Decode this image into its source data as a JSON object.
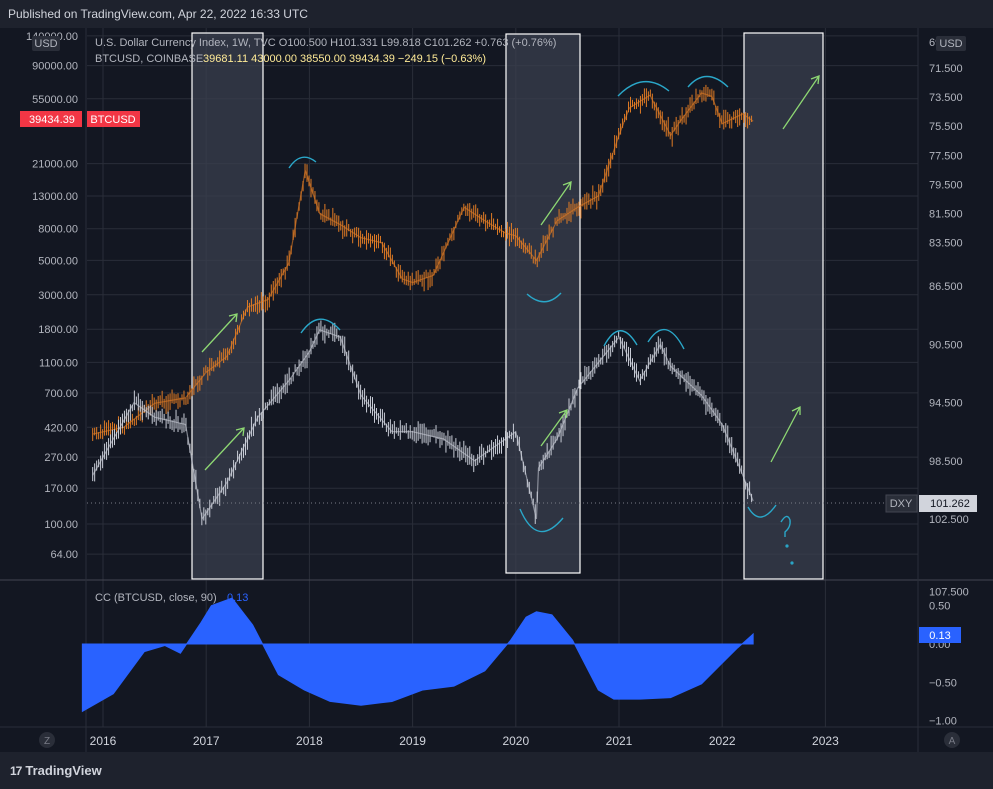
{
  "header": {
    "published": "Published on TradingView.com, Apr 22, 2022 16:33 UTC"
  },
  "footer": {
    "logo_text": "TradingView",
    "logo_mark": "17"
  },
  "colors": {
    "background": "#131722",
    "btc_candles": "#e07b24",
    "dxy_candles": "#c8ccd6",
    "highlight_box_fill": "#3a3f4d",
    "highlight_box_border": "#ffffff",
    "annotation_arrow": "#8ed873",
    "annotation_arc": "#2aa7c9",
    "cc_fill": "#2962ff",
    "btc_label": "#f23645"
  },
  "legend": {
    "dxy_line": "U.S. Dollar Currency Index, 1W, TVC  O100.500  H101.331  L99.818  C101.262  +0.763 (+0.76%)",
    "btc_name": "BTCUSD, COINBASE",
    "btc_values": "39681.11  43000.00  38550.00  39434.39  −249.15 (−0.63%)"
  },
  "chart_data": [
    {
      "type": "line",
      "title": "U.S. Dollar Currency Index (DXY) vs BTCUSD",
      "left_axis": {
        "unit_label": "USD",
        "scale": "log",
        "ticks": [
          "140000.00",
          "90000.00",
          "55000.00",
          "21000.00",
          "13000.00",
          "8000.00",
          "5000.00",
          "3000.00",
          "1800.00",
          "1100.00",
          "700.00",
          "420.00",
          "270.00",
          "170.00",
          "100.00",
          "64.00"
        ],
        "current_label": "39434.39",
        "current_series": "BTCUSD"
      },
      "right_axis": {
        "unit_label": "USD",
        "inverted": true,
        "ticks": [
          "69.700",
          "71.500",
          "73.500",
          "75.500",
          "77.500",
          "79.500",
          "81.500",
          "83.500",
          "86.500",
          "90.500",
          "94.500",
          "98.500",
          "102.500",
          "107.500"
        ],
        "current_label": "101.262",
        "current_series": "DXY"
      },
      "x_axis": {
        "ticks": [
          "2016",
          "2017",
          "2018",
          "2019",
          "2020",
          "2021",
          "2022",
          "2023"
        ]
      },
      "series": [
        {
          "name": "BTCUSD",
          "x": [
            2015.9,
            2016.2,
            2016.5,
            2016.8,
            2017.0,
            2017.2,
            2017.4,
            2017.6,
            2017.8,
            2017.96,
            2018.1,
            2018.3,
            2018.5,
            2018.7,
            2018.9,
            2019.0,
            2019.2,
            2019.5,
            2019.7,
            2019.9,
            2020.0,
            2020.2,
            2020.4,
            2020.6,
            2020.8,
            2021.0,
            2021.1,
            2021.3,
            2021.5,
            2021.6,
            2021.8,
            2021.9,
            2022.0,
            2022.2,
            2022.3
          ],
          "values": [
            380,
            420,
            600,
            650,
            950,
            1200,
            2500,
            2800,
            4800,
            19000,
            10000,
            8500,
            7000,
            6500,
            3800,
            3600,
            4000,
            11000,
            9000,
            7500,
            7200,
            5000,
            9000,
            11000,
            13000,
            32000,
            48000,
            58000,
            32000,
            40000,
            60000,
            57000,
            38000,
            44000,
            39434
          ]
        },
        {
          "name": "DXY",
          "x": [
            2015.9,
            2016.1,
            2016.3,
            2016.5,
            2016.8,
            2016.96,
            2017.2,
            2017.5,
            2017.8,
            2018.0,
            2018.1,
            2018.3,
            2018.5,
            2018.8,
            2019.0,
            2019.3,
            2019.6,
            2019.9,
            2020.0,
            2020.2,
            2020.22,
            2020.4,
            2020.6,
            2021.0,
            2021.2,
            2021.4,
            2021.5,
            2021.8,
            2022.0,
            2022.2,
            2022.3
          ],
          "values": [
            99.5,
            97,
            94.5,
            95.5,
            96,
            102.5,
            100,
            95.5,
            93,
            91,
            89.5,
            90,
            94,
            96.5,
            96.5,
            97,
            98.5,
            97,
            96.5,
            102.5,
            99,
            97,
            93.5,
            90,
            93,
            90.5,
            92,
            94,
            96,
            99.5,
            101.262
          ]
        }
      ]
    },
    {
      "type": "area",
      "title": "CC (BTCUSD, close, 90)",
      "current_value": "0.13",
      "y_ticks": [
        "0.50",
        "0.00",
        "−0.50",
        "−1.00"
      ],
      "ylim": [
        -1.05,
        0.62
      ],
      "x": [
        2015.8,
        2016.1,
        2016.4,
        2016.6,
        2016.75,
        2016.95,
        2017.05,
        2017.25,
        2017.45,
        2017.7,
        2017.95,
        2018.2,
        2018.5,
        2018.8,
        2019.1,
        2019.4,
        2019.7,
        2019.95,
        2020.1,
        2020.2,
        2020.35,
        2020.55,
        2020.8,
        2020.95,
        2021.2,
        2021.5,
        2021.8,
        2022.0,
        2022.15,
        2022.3
      ],
      "values": [
        -0.88,
        -0.65,
        -0.1,
        -0.02,
        -0.12,
        0.28,
        0.5,
        0.6,
        0.25,
        -0.4,
        -0.6,
        -0.75,
        -0.8,
        -0.75,
        -0.6,
        -0.55,
        -0.35,
        0.05,
        0.35,
        0.42,
        0.38,
        0.05,
        -0.6,
        -0.72,
        -0.72,
        -0.7,
        -0.52,
        -0.25,
        -0.05,
        0.13
      ]
    }
  ]
}
